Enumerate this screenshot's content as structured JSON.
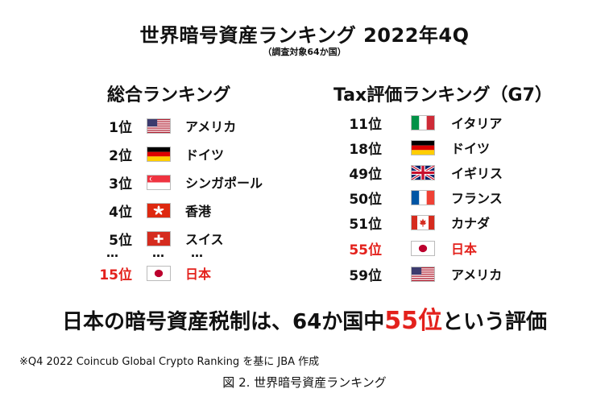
{
  "title": "世界暗号資産ランキング 2022年4Q",
  "subtitle": "（調査対象64か国）",
  "left": {
    "heading": "総合ランキング",
    "rows": [
      {
        "rank": "1位",
        "country": "アメリカ",
        "flag": "us-flag"
      },
      {
        "rank": "2位",
        "country": "ドイツ",
        "flag": "de-flag"
      },
      {
        "rank": "3位",
        "country": "シンガポール",
        "flag": "sg-flag"
      },
      {
        "rank": "4位",
        "country": "香港",
        "flag": "hk-flag"
      },
      {
        "rank": "5位",
        "country": "スイス",
        "flag": "ch-flag"
      }
    ],
    "ellipsis": "…",
    "highlight": {
      "rank": "15位",
      "country": "日本",
      "flag": "jp-flag"
    }
  },
  "right": {
    "heading": "Tax評価ランキング（G7）",
    "rows": [
      {
        "rank": "11位",
        "country": "イタリア",
        "flag": "it-flag"
      },
      {
        "rank": "18位",
        "country": "ドイツ",
        "flag": "de-flag"
      },
      {
        "rank": "49位",
        "country": "イギリス",
        "flag": "uk-flag"
      },
      {
        "rank": "50位",
        "country": "フランス",
        "flag": "fr-flag"
      },
      {
        "rank": "51位",
        "country": "カナダ",
        "flag": "ca-flag"
      },
      {
        "rank": "55位",
        "country": "日本",
        "flag": "jp-flag",
        "highlight": true
      },
      {
        "rank": "59位",
        "country": "アメリカ",
        "flag": "us-flag"
      }
    ]
  },
  "summary": {
    "before": "日本の暗号資産税制は、64か国中",
    "highlight": "55位",
    "after": "という評価"
  },
  "note": "※Q4 2022 Coincub Global Crypto Ranking を基に JBA 作成",
  "caption": "図 2. 世界暗号資産ランキング",
  "colors": {
    "highlight": "#e3211c"
  }
}
